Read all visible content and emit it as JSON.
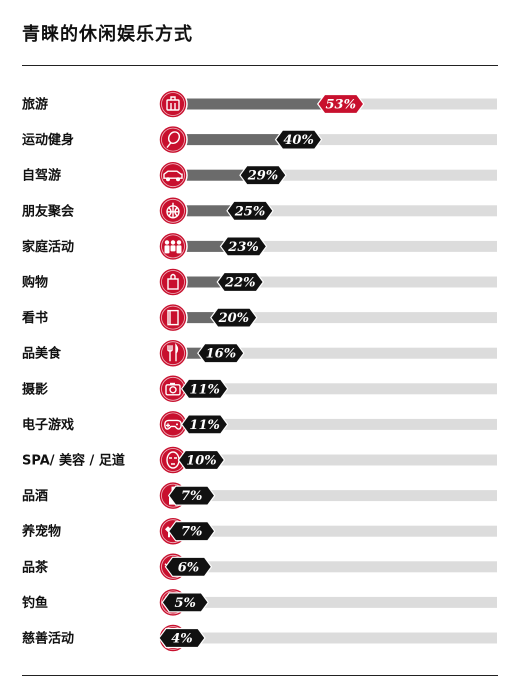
{
  "title": "青睐的休闲娱乐方式",
  "colors": {
    "track": "#dcdcdc",
    "bar": "#6b6b6b",
    "icon_circle": "#c8102e",
    "tag": "#111111",
    "tag_highlight": "#c8102e"
  },
  "chart_data": {
    "type": "bar",
    "orientation": "horizontal",
    "title": "青睐的休闲娱乐方式",
    "unit": "%",
    "xlim": [
      0,
      100
    ],
    "categories": [
      "旅游",
      "运动健身",
      "自驾游",
      "朋友聚会",
      "家庭活动",
      "购物",
      "看书",
      "品美食",
      "摄影",
      "电子游戏",
      "SPA/ 美容 / 足道",
      "品酒",
      "养宠物",
      "品茶",
      "钓鱼",
      "慈善活动"
    ],
    "values": [
      53,
      40,
      29,
      25,
      23,
      22,
      20,
      16,
      11,
      11,
      10,
      7,
      7,
      6,
      5,
      4
    ],
    "value_labels": [
      "53%",
      "40%",
      "29%",
      "25%",
      "23%",
      "22%",
      "20%",
      "16%",
      "11%",
      "11%",
      "10%",
      "7%",
      "7%",
      "6%",
      "5%",
      "4%"
    ],
    "icons": [
      "luggage-icon",
      "tennis-racket-icon",
      "car-icon",
      "disco-ball-icon",
      "family-icon",
      "shopping-bag-icon",
      "book-icon",
      "fork-knife-icon",
      "camera-icon",
      "gamepad-icon",
      "face-mask-icon",
      "wine-bottle-icon",
      "dog-icon",
      "teapot-icon",
      "fishing-icon",
      "heart-icon"
    ],
    "highlight_index": 0
  }
}
